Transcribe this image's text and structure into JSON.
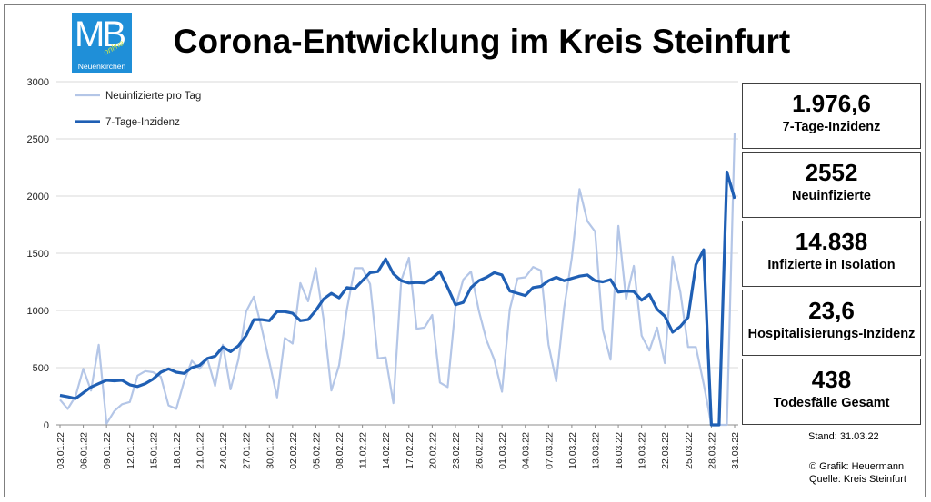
{
  "header": {
    "title": "Corona-Entwicklung im Kreis Steinfurt",
    "logo_text": "MB",
    "logo_online": "online",
    "logo_town": "Neuenkirchen"
  },
  "stats": [
    {
      "value": "1.976,6",
      "label": "7-Tage-Inzidenz"
    },
    {
      "value": "2552",
      "label": "Neuinfizierte"
    },
    {
      "value": "14.838",
      "label": "Infizierte in Isolation"
    },
    {
      "value": "23,6",
      "label": "Hospitalisierungs-Inzidenz"
    },
    {
      "value": "438",
      "label": "Todesfälle Gesamt"
    }
  ],
  "footer": {
    "stand": "Stand: 31.03.22",
    "credit": "© Grafik: Heuermann",
    "source": "Quelle: Kreis Steinfurt"
  },
  "colors": {
    "light_series": "#b4c6e7",
    "dark_series": "#1f5fb4",
    "grid": "#d9d9d9"
  },
  "chart_data": {
    "type": "line",
    "ylim": [
      0,
      3000
    ],
    "yticks": [
      0,
      500,
      1000,
      1500,
      2000,
      2500,
      3000
    ],
    "legend": "top-left",
    "x": [
      "03.01.22",
      "04.01.22",
      "05.01.22",
      "06.01.22",
      "07.01.22",
      "08.01.22",
      "09.01.22",
      "10.01.22",
      "11.01.22",
      "12.01.22",
      "13.01.22",
      "14.01.22",
      "15.01.22",
      "16.01.22",
      "17.01.22",
      "18.01.22",
      "19.01.22",
      "20.01.22",
      "21.01.22",
      "22.01.22",
      "23.01.22",
      "24.01.22",
      "25.01.22",
      "26.01.22",
      "27.01.22",
      "28.01.22",
      "29.01.22",
      "30.01.22",
      "31.01.22",
      "01.02.22",
      "02.02.22",
      "03.02.22",
      "04.02.22",
      "05.02.22",
      "06.02.22",
      "07.02.22",
      "08.02.22",
      "09.02.22",
      "10.02.22",
      "11.02.22",
      "12.02.22",
      "13.02.22",
      "14.02.22",
      "15.02.22",
      "16.02.22",
      "17.02.22",
      "18.02.22",
      "19.02.22",
      "20.02.22",
      "21.02.22",
      "22.02.22",
      "23.02.22",
      "24.02.22",
      "25.02.22",
      "26.02.22",
      "27.02.22",
      "28.02.22",
      "01.03.22",
      "02.03.22",
      "03.03.22",
      "04.03.22",
      "05.03.22",
      "06.03.22",
      "07.03.22",
      "08.03.22",
      "09.03.22",
      "10.03.22",
      "11.03.22",
      "12.03.22",
      "13.03.22",
      "14.03.22",
      "15.03.22",
      "16.03.22",
      "17.03.22",
      "18.03.22",
      "19.03.22",
      "20.03.22",
      "21.03.22",
      "22.03.22",
      "23.03.22",
      "24.03.22",
      "25.03.22",
      "26.03.22",
      "27.03.22",
      "28.03.22",
      "29.03.22",
      "30.03.22",
      "31.03.22"
    ],
    "xtick_labels": [
      "03.01.22",
      "06.01.22",
      "09.01.22",
      "12.01.22",
      "15.01.22",
      "18.01.22",
      "21.01.22",
      "24.01.22",
      "27.01.22",
      "30.01.22",
      "02.02.22",
      "05.02.22",
      "08.02.22",
      "11.02.22",
      "14.02.22",
      "17.02.22",
      "20.02.22",
      "23.02.22",
      "26.02.22",
      "01.03.22",
      "04.03.22",
      "07.03.22",
      "10.03.22",
      "13.03.22",
      "16.03.22",
      "19.03.22",
      "22.03.22",
      "25.03.22",
      "28.03.22",
      "31.03.22"
    ],
    "series": [
      {
        "name": "Neuinfizierte pro Tag",
        "values": [
          220,
          140,
          250,
          490,
          300,
          700,
          10,
          120,
          180,
          200,
          430,
          470,
          460,
          420,
          170,
          140,
          380,
          560,
          490,
          580,
          340,
          700,
          310,
          570,
          990,
          1120,
          850,
          550,
          240,
          760,
          710,
          1240,
          1080,
          1370,
          920,
          300,
          520,
          1010,
          1370,
          1370,
          1230,
          580,
          590,
          190,
          1260,
          1460,
          840,
          850,
          960,
          370,
          330,
          1030,
          1270,
          1340,
          1000,
          740,
          570,
          290,
          1010,
          1280,
          1290,
          1380,
          1350,
          700,
          380,
          1020,
          1460,
          2060,
          1780,
          1690,
          830,
          570,
          1740,
          1100,
          1390,
          780,
          650,
          850,
          540,
          1470,
          1160,
          680,
          680,
          360,
          0,
          0,
          0,
          2552
        ]
      },
      {
        "name": "7-Tage-Inzidenz",
        "values": [
          258,
          245,
          230,
          280,
          330,
          360,
          390,
          385,
          390,
          350,
          335,
          360,
          400,
          460,
          490,
          460,
          450,
          500,
          520,
          580,
          600,
          680,
          640,
          690,
          780,
          920,
          920,
          910,
          990,
          990,
          975,
          910,
          920,
          1000,
          1100,
          1150,
          1110,
          1200,
          1190,
          1260,
          1330,
          1340,
          1450,
          1320,
          1260,
          1240,
          1245,
          1240,
          1280,
          1340,
          1200,
          1050,
          1070,
          1200,
          1260,
          1290,
          1330,
          1310,
          1170,
          1150,
          1130,
          1200,
          1210,
          1260,
          1290,
          1260,
          1280,
          1300,
          1310,
          1260,
          1250,
          1270,
          1160,
          1170,
          1165,
          1090,
          1140,
          1010,
          950,
          810,
          860,
          940,
          1400,
          1530,
          0,
          0,
          2210,
          1976.6
        ]
      }
    ]
  }
}
